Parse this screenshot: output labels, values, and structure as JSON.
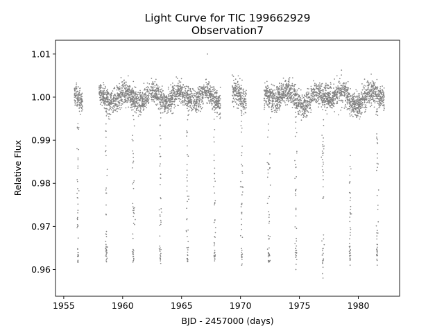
{
  "chart_data": {
    "type": "scatter",
    "title": "Light Curve for TIC 199662929",
    "subtitle": "Observation7",
    "xlabel": "BJD - 2457000 (days)",
    "ylabel": "Relative Flux",
    "xlim": [
      1954.3,
      1983.5
    ],
    "ylim": [
      0.9538,
      1.0132
    ],
    "xticks": [
      1955,
      1960,
      1965,
      1970,
      1975,
      1980
    ],
    "yticks": [
      0.96,
      0.97,
      0.98,
      0.99,
      1.0,
      1.01
    ],
    "xtick_labels": [
      "1955",
      "1960",
      "1965",
      "1970",
      "1975",
      "1980"
    ],
    "ytick_labels": [
      "0.96",
      "0.97",
      "0.98",
      "0.99",
      "1.00",
      "1.01"
    ],
    "grid": false,
    "marker_color": "#808080",
    "observation_segments": [
      {
        "x_start": 1955.9,
        "x_end": 1956.6
      },
      {
        "x_start": 1958.0,
        "x_end": 1968.3
      },
      {
        "x_start": 1969.3,
        "x_end": 1970.5
      },
      {
        "x_start": 1972.0,
        "x_end": 1982.2
      }
    ],
    "eclipse_times": [
      1956.2,
      1958.6,
      1960.9,
      1963.2,
      1965.5,
      1967.8,
      1970.1,
      1972.4,
      1974.7,
      1977.0,
      1979.3,
      1981.6
    ],
    "eclipse_depth": 0.962,
    "baseline_flux": 1.0,
    "series": [
      {
        "values_sample": [
          {
            "x": 1956.2,
            "y": 0.962
          },
          {
            "x": 1958.6,
            "y": 0.962
          },
          {
            "x": 1960.9,
            "y": 0.962
          },
          {
            "x": 1963.2,
            "y": 0.962
          },
          {
            "x": 1965.5,
            "y": 0.962
          },
          {
            "x": 1967.8,
            "y": 0.962
          },
          {
            "x": 1970.1,
            "y": 0.961
          },
          {
            "x": 1972.4,
            "y": 0.962
          },
          {
            "x": 1974.7,
            "y": 0.96
          },
          {
            "x": 1977.0,
            "y": 0.958
          },
          {
            "x": 1979.3,
            "y": 0.961
          },
          {
            "x": 1981.6,
            "y": 0.961
          },
          {
            "x": 1967.2,
            "y": 1.01
          }
        ]
      }
    ]
  }
}
